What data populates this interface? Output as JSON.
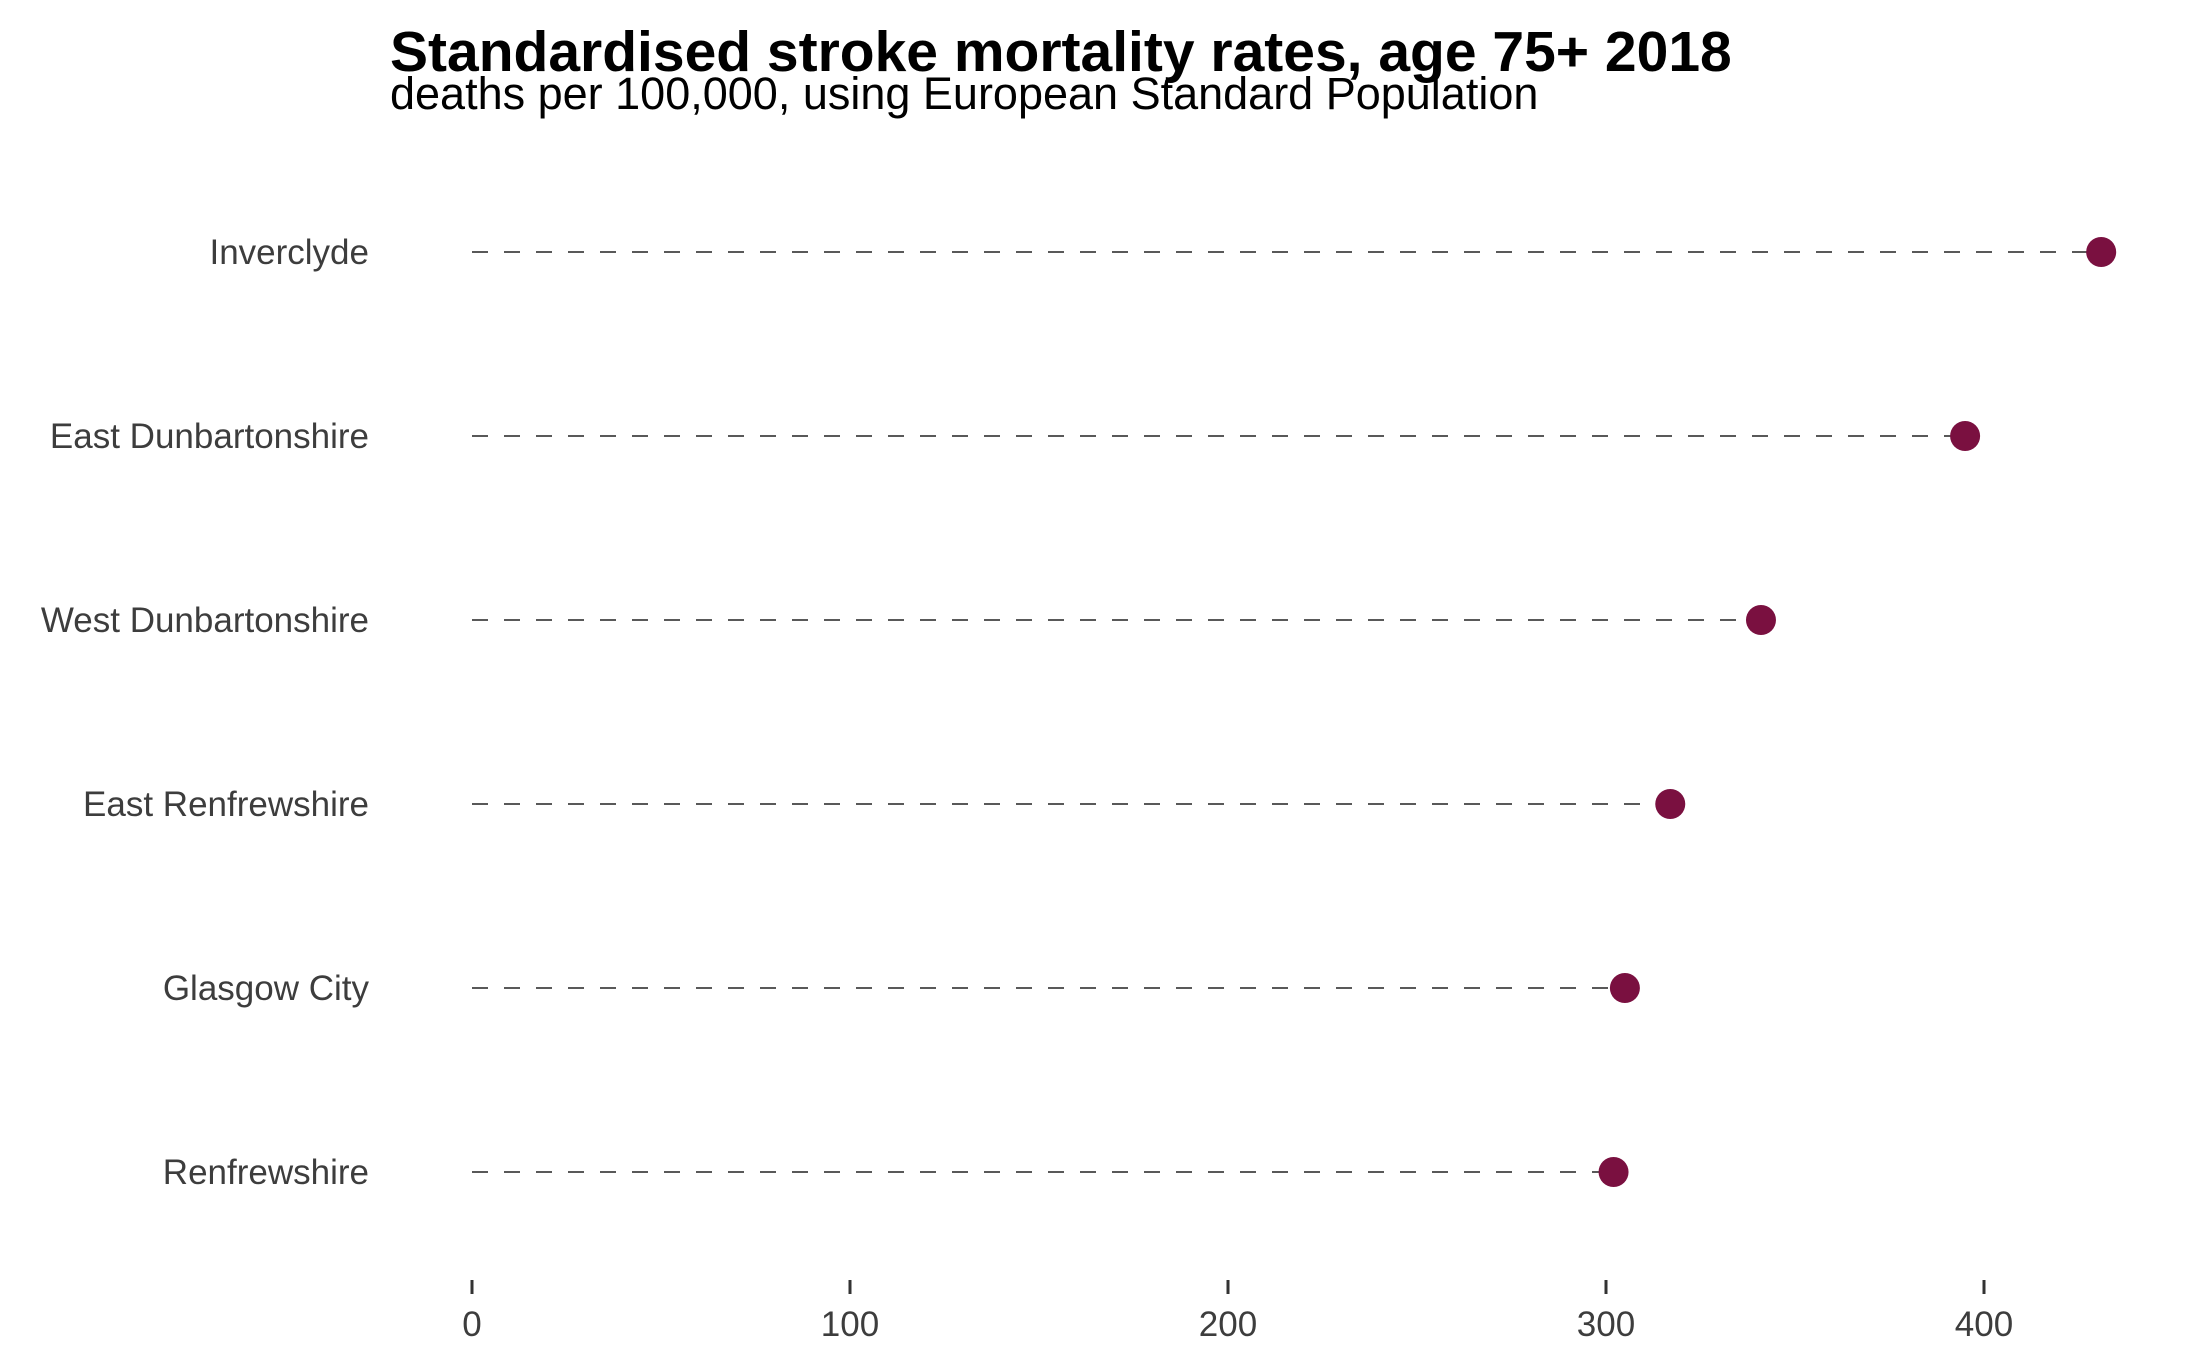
{
  "chart_data": {
    "type": "lollipop",
    "title": "Standardised stroke mortality rates, age 75+ 2018",
    "subtitle": "deaths per 100,000, using European Standard Population",
    "categories": [
      "Inverclyde",
      "East Dunbartonshire",
      "West Dunbartonshire",
      "East Renfrewshire",
      "Glasgow City",
      "Renfrewshire"
    ],
    "values": [
      431,
      395,
      341,
      317,
      305,
      302
    ],
    "xlabel": "",
    "ylabel": "",
    "xlim": [
      0,
      431
    ],
    "xticks": [
      "0",
      "100",
      "200",
      "300",
      "400"
    ],
    "grid": false,
    "legend": "none",
    "colors": {
      "point": "#7a1040",
      "segment": "#595959"
    }
  }
}
